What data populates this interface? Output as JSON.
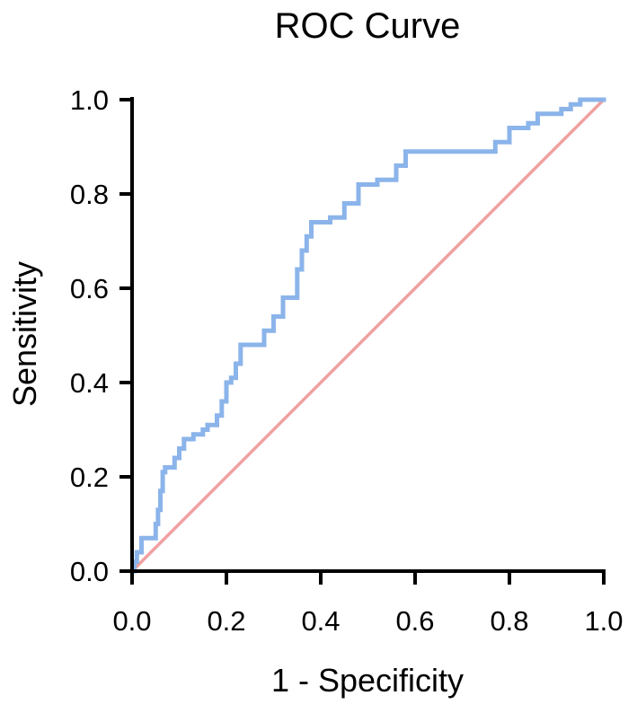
{
  "chart_data": {
    "type": "line",
    "title": "ROC Curve",
    "xlabel": "1 - Specificity",
    "ylabel": "Sensitivity",
    "xlim": [
      0.0,
      1.0
    ],
    "ylim": [
      0.0,
      1.0
    ],
    "x_ticks": [
      "0.0",
      "0.2",
      "0.4",
      "0.6",
      "0.8",
      "1.0"
    ],
    "y_ticks": [
      "0.0",
      "0.2",
      "0.4",
      "0.6",
      "0.8",
      "1.0"
    ],
    "grid": false,
    "legend": "none",
    "series": [
      {
        "role": "roc-curve",
        "color": "#8bb4ea",
        "step": true,
        "x": [
          0.0,
          0.005,
          0.01,
          0.02,
          0.04,
          0.05,
          0.055,
          0.06,
          0.065,
          0.07,
          0.08,
          0.09,
          0.1,
          0.11,
          0.13,
          0.15,
          0.16,
          0.18,
          0.19,
          0.2,
          0.21,
          0.22,
          0.23,
          0.27,
          0.28,
          0.3,
          0.32,
          0.35,
          0.36,
          0.37,
          0.38,
          0.4,
          0.42,
          0.45,
          0.48,
          0.5,
          0.52,
          0.56,
          0.58,
          0.6,
          0.65,
          0.7,
          0.75,
          0.77,
          0.79,
          0.8,
          0.81,
          0.84,
          0.86,
          0.88,
          0.9,
          0.91,
          0.93,
          0.95,
          0.97,
          0.99,
          1.0
        ],
        "y": [
          0.0,
          0.02,
          0.04,
          0.07,
          0.07,
          0.1,
          0.13,
          0.17,
          0.21,
          0.22,
          0.22,
          0.24,
          0.26,
          0.28,
          0.29,
          0.3,
          0.31,
          0.33,
          0.36,
          0.4,
          0.41,
          0.44,
          0.48,
          0.48,
          0.51,
          0.54,
          0.58,
          0.64,
          0.68,
          0.71,
          0.74,
          0.74,
          0.75,
          0.78,
          0.82,
          0.82,
          0.83,
          0.86,
          0.89,
          0.89,
          0.89,
          0.89,
          0.89,
          0.91,
          0.91,
          0.94,
          0.94,
          0.95,
          0.97,
          0.97,
          0.97,
          0.98,
          0.99,
          1.0,
          1.0,
          1.0,
          1.0
        ]
      },
      {
        "role": "reference-diagonal",
        "color": "#f0a0a0",
        "step": false,
        "x": [
          0.0,
          1.0
        ],
        "y": [
          0.0,
          1.0
        ]
      }
    ]
  }
}
